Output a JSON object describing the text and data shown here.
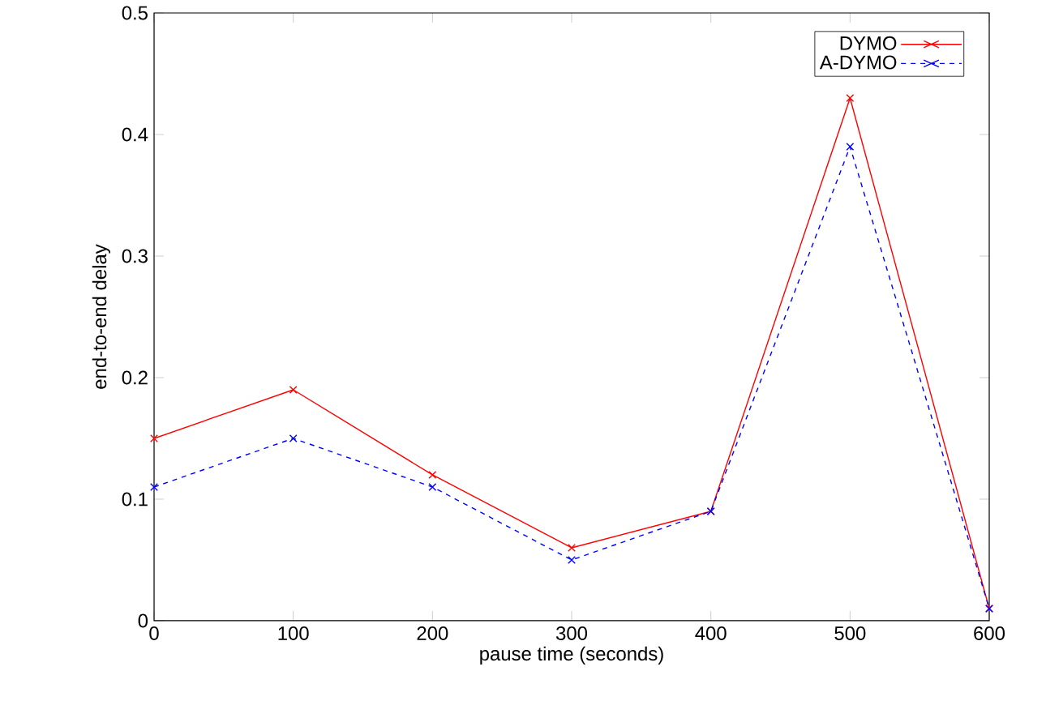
{
  "chart_data": {
    "type": "line",
    "xlabel": "pause time (seconds)",
    "ylabel": "end-to-end delay",
    "x": [
      0,
      100,
      200,
      300,
      400,
      500,
      600
    ],
    "series": [
      {
        "name": "DYMO",
        "color": "#ff0000",
        "values": [
          0.15,
          0.19,
          0.12,
          0.06,
          0.09,
          0.43,
          0.01
        ],
        "marker": "cross",
        "line_style": "solid"
      },
      {
        "name": "A-DYMO",
        "color": "#0000ff",
        "values": [
          0.11,
          0.15,
          0.11,
          0.05,
          0.09,
          0.39,
          0.01
        ],
        "marker": "cross",
        "line_style": "dashed"
      }
    ],
    "xlim": [
      0,
      600
    ],
    "ylim": [
      0,
      0.5
    ],
    "xticks": [
      0,
      100,
      200,
      300,
      400,
      500,
      600
    ],
    "yticks": [
      0,
      0.1,
      0.2,
      0.3,
      0.4,
      0.5
    ],
    "legend": "top right",
    "grid": false
  }
}
